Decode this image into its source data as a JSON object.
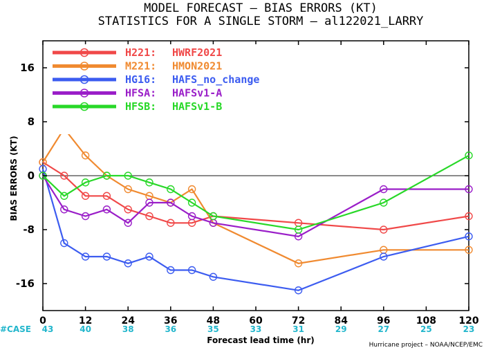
{
  "title_line1": "MODEL FORECAST – BIAS ERRORS (KT)",
  "title_line2": "STATISTICS FOR A SINGLE STORM – al122021_LARRY",
  "case_label": "#CASE",
  "credit": "Hurricane project – NOAA/NCEP/EMC",
  "chart_data": {
    "type": "line",
    "xlabel": "Forecast lead time (hr)",
    "ylabel": "BIAS ERRORS (KT)",
    "xlim": [
      0,
      120
    ],
    "ylim": [
      -20,
      20
    ],
    "x_ticks": [
      0,
      12,
      24,
      36,
      48,
      60,
      72,
      84,
      96,
      108,
      120
    ],
    "y_ticks": [
      16,
      8,
      0,
      -8,
      -16
    ],
    "zero_line": true,
    "grid": false,
    "legend_position": "top-left",
    "case_counts": [
      {
        "x": 0,
        "n": "43"
      },
      {
        "x": 12,
        "n": "40"
      },
      {
        "x": 24,
        "n": "38"
      },
      {
        "x": 36,
        "n": "36"
      },
      {
        "x": 48,
        "n": "35"
      },
      {
        "x": 60,
        "n": "33"
      },
      {
        "x": 72,
        "n": "31"
      },
      {
        "x": 84,
        "n": "29"
      },
      {
        "x": 96,
        "n": "27"
      },
      {
        "x": 108,
        "n": "25"
      },
      {
        "x": 120,
        "n": "23"
      }
    ],
    "series": [
      {
        "name": "H221: HWRF2021",
        "code": "H221:",
        "label": "HWRF2021",
        "color": "#f04848",
        "x": [
          0,
          6,
          12,
          18,
          24,
          30,
          36,
          42,
          48,
          72,
          96,
          120
        ],
        "values": [
          2,
          0,
          -3,
          -3,
          -5,
          -6,
          -7,
          -7,
          -6,
          -7,
          -8,
          -6
        ]
      },
      {
        "name": "M221: HMON2021",
        "code": "M221:",
        "label": "HMON2021",
        "color": "#f08a30",
        "x": [
          0,
          6,
          12,
          18,
          24,
          30,
          36,
          42,
          48,
          72,
          96,
          120
        ],
        "values": [
          2,
          7,
          3,
          0,
          -2,
          -3,
          -4,
          -2,
          -7,
          -13,
          -11,
          -11
        ]
      },
      {
        "name": "HG16: HAFS_no_change",
        "code": "HG16:",
        "label": "HAFS_no_change",
        "color": "#3c5cf0",
        "x": [
          0,
          6,
          12,
          18,
          24,
          30,
          36,
          42,
          48,
          72,
          96,
          120
        ],
        "values": [
          1,
          -10,
          -12,
          -12,
          -13,
          -12,
          -14,
          -14,
          -15,
          -17,
          -12,
          -9
        ]
      },
      {
        "name": "HFSA: HAFSv1-A",
        "code": "HFSA:",
        "label": "HAFSv1-A",
        "color": "#9a1ec8",
        "x": [
          0,
          6,
          12,
          18,
          24,
          30,
          36,
          42,
          48,
          72,
          96,
          120
        ],
        "values": [
          0,
          -5,
          -6,
          -5,
          -7,
          -4,
          -4,
          -6,
          -7,
          -9,
          -2,
          -2
        ]
      },
      {
        "name": "HFSB: HAFSv1-B",
        "code": "HFSB:",
        "label": "HAFSv1-B",
        "color": "#28d828",
        "x": [
          0,
          6,
          12,
          18,
          24,
          30,
          36,
          42,
          48,
          72,
          96,
          120
        ],
        "values": [
          0,
          -3,
          -1,
          0,
          0,
          -1,
          -2,
          -4,
          -6,
          -8,
          -4,
          3
        ]
      }
    ]
  }
}
